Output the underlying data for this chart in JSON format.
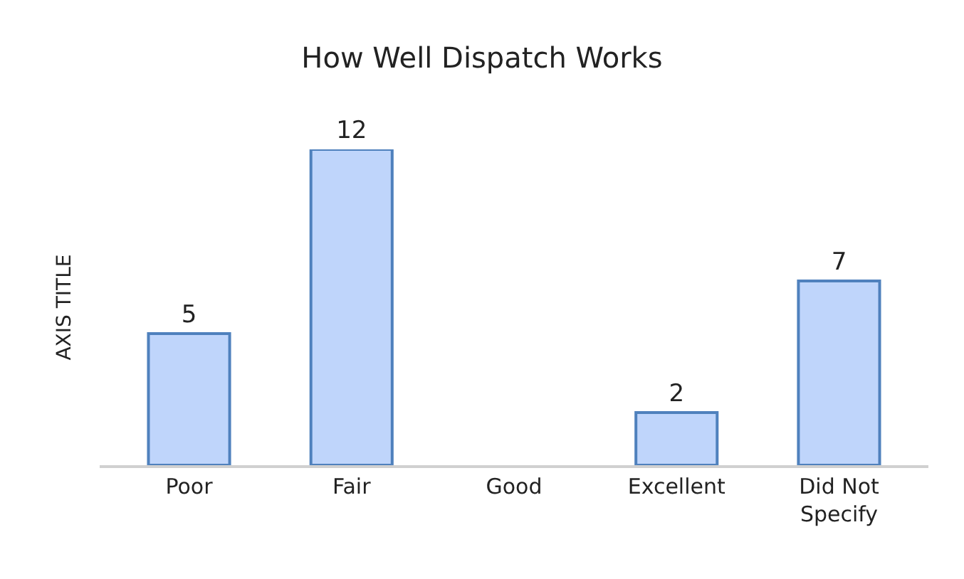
{
  "chart_data": {
    "type": "bar",
    "title": "How Well Dispatch Works",
    "ylabel": "AXIS TITLE",
    "categories": [
      "Poor",
      "Fair",
      "Good",
      "Excellent",
      "Did Not\nSpecify"
    ],
    "values": [
      5,
      12,
      0,
      2,
      7
    ],
    "value_labels": [
      "5",
      "12",
      null,
      "2",
      "7"
    ],
    "color": "#bfd5fb",
    "legend": false
  }
}
